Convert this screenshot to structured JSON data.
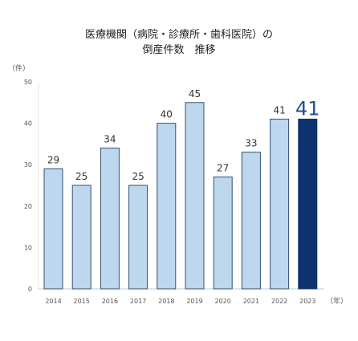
{
  "chart_data": {
    "type": "bar",
    "title_line1": "医療機関（病院・診療所・歯科医院）の",
    "title_line2": "倒産件数　推移",
    "y_unit": "（件）",
    "x_unit": "（年）",
    "categories": [
      "2014",
      "2015",
      "2016",
      "2017",
      "2018",
      "2019",
      "2020",
      "2021",
      "2022",
      "2023"
    ],
    "values": [
      29,
      25,
      34,
      25,
      40,
      45,
      27,
      33,
      41,
      41
    ],
    "highlight_index": 9,
    "ylim": [
      0,
      50
    ],
    "yticks": [
      0,
      10,
      20,
      30,
      40,
      50
    ],
    "grid": false,
    "colors": {
      "bar": "#bdd7ee",
      "bar_border": "#34506f",
      "highlight": "#0e3270",
      "label": "#333333",
      "highlight_label": "#1f4f8f"
    }
  }
}
